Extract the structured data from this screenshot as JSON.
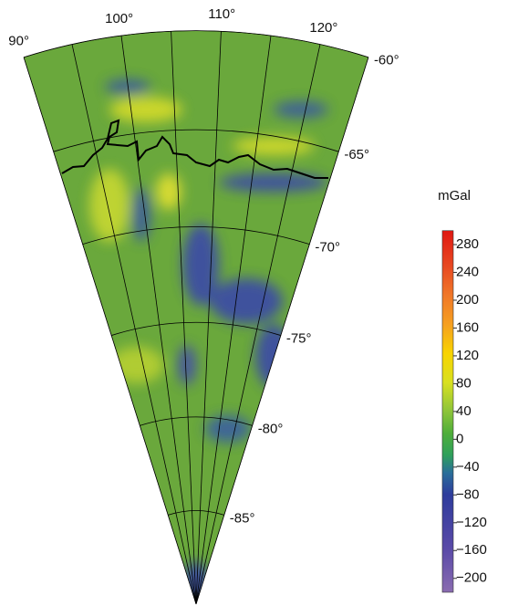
{
  "map": {
    "lonlim": [
      90,
      125
    ],
    "latlim": [
      -90,
      -60
    ],
    "lon_grid": [
      90,
      95,
      100,
      105,
      110,
      115,
      120,
      125
    ],
    "lon_ticks": [
      {
        "value": 90,
        "label": "90°"
      },
      {
        "value": 100,
        "label": "100°"
      },
      {
        "value": 110,
        "label": "110°"
      },
      {
        "value": 120,
        "label": "120°"
      }
    ],
    "lat_ticks": [
      {
        "value": -60,
        "label": "-60°"
      },
      {
        "value": -65,
        "label": "-65°"
      },
      {
        "value": -70,
        "label": "-70°"
      },
      {
        "value": -75,
        "label": "-75°"
      },
      {
        "value": -80,
        "label": "-80°"
      },
      {
        "value": -85,
        "label": "-85°"
      }
    ]
  },
  "colorbar": {
    "label": "mGal",
    "clim": [
      -220,
      300
    ],
    "ticks": [
      280,
      240,
      200,
      160,
      120,
      80,
      40,
      0,
      {
        "value": -40,
        "label": "−40"
      },
      {
        "value": -80,
        "label": "−80"
      },
      {
        "value": -120,
        "label": "−120"
      },
      {
        "value": -160,
        "label": "−160"
      },
      {
        "value": -200,
        "label": "−200"
      }
    ]
  }
}
